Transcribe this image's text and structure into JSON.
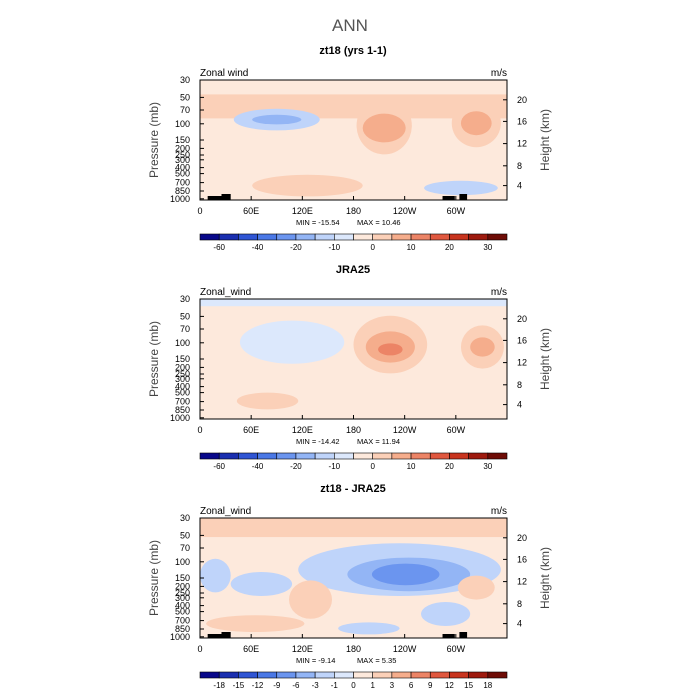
{
  "figure": {
    "title": "ANN"
  },
  "chart_data": [
    {
      "type": "heatmap",
      "title": "zt18 (yrs 1-1)",
      "corner_left": "Zonal wind",
      "corner_right": "m/s",
      "ylabel": "Pressure (mb)",
      "ylabel_right": "Height (km)",
      "xticks": [
        "0",
        "60E",
        "120E",
        "180",
        "120W",
        "60W"
      ],
      "yticks_left": [
        "30",
        "50",
        "70",
        "100",
        "150",
        "200",
        "250",
        "300",
        "400",
        "500",
        "700",
        "850",
        "1000"
      ],
      "yticks_right": [
        "20",
        "16",
        "12",
        "8",
        "4"
      ],
      "min_label": "MIN = -15.54",
      "max_label": "MAX = 10.46",
      "colorbar": {
        "levels": [
          -60,
          -50,
          -40,
          -30,
          -20,
          -15,
          -10,
          -5,
          0,
          5,
          10,
          15,
          20,
          25,
          30
        ],
        "labels": [
          "-60",
          "-40",
          "-20",
          "-10",
          "0",
          "10",
          "20",
          "30"
        ],
        "colors": [
          "#08088a",
          "#1a2fb0",
          "#2f55d4",
          "#4a78e6",
          "#6b95ef",
          "#93b5f5",
          "#bfd4fa",
          "#dce8fc",
          "#fde9dc",
          "#fbd0b8",
          "#f5ad8c",
          "#ec8466",
          "#e0583f",
          "#c8341e",
          "#9e1a0e",
          "#6e0c06"
        ]
      },
      "features": [
        {
          "kind": "band",
          "y0": 0.12,
          "y1": 0.32,
          "level": 9
        },
        {
          "kind": "blob",
          "cx": 0.25,
          "cy": 0.33,
          "rx": 0.14,
          "ry": 0.09,
          "level": 6
        },
        {
          "kind": "blob",
          "cx": 0.25,
          "cy": 0.33,
          "rx": 0.08,
          "ry": 0.04,
          "level": 5
        },
        {
          "kind": "blob",
          "cx": 0.6,
          "cy": 0.38,
          "rx": 0.09,
          "ry": 0.24,
          "level": 9
        },
        {
          "kind": "blob",
          "cx": 0.6,
          "cy": 0.4,
          "rx": 0.07,
          "ry": 0.12,
          "level": 10
        },
        {
          "kind": "blob",
          "cx": 0.9,
          "cy": 0.36,
          "rx": 0.08,
          "ry": 0.2,
          "level": 9
        },
        {
          "kind": "blob",
          "cx": 0.9,
          "cy": 0.36,
          "rx": 0.05,
          "ry": 0.1,
          "level": 10
        },
        {
          "kind": "blob",
          "cx": 0.35,
          "cy": 0.88,
          "rx": 0.18,
          "ry": 0.09,
          "level": 9
        },
        {
          "kind": "blob",
          "cx": 0.85,
          "cy": 0.9,
          "rx": 0.12,
          "ry": 0.06,
          "level": 6
        }
      ]
    },
    {
      "type": "heatmap",
      "title": "JRA25",
      "corner_left": "Zonal_wind",
      "corner_right": "m/s",
      "ylabel": "Pressure (mb)",
      "ylabel_right": "Height (km)",
      "xticks": [
        "0",
        "60E",
        "120E",
        "180",
        "120W",
        "60W"
      ],
      "yticks_left": [
        "30",
        "50",
        "70",
        "100",
        "150",
        "200",
        "250",
        "300",
        "400",
        "500",
        "700",
        "850",
        "1000"
      ],
      "yticks_right": [
        "20",
        "16",
        "12",
        "8",
        "4"
      ],
      "min_label": "MIN = -14.42",
      "max_label": "MAX = 11.94",
      "colorbar": {
        "levels": [
          -60,
          -50,
          -40,
          -30,
          -20,
          -15,
          -10,
          -5,
          0,
          5,
          10,
          15,
          20,
          25,
          30
        ],
        "labels": [
          "-60",
          "-40",
          "-20",
          "-10",
          "0",
          "10",
          "20",
          "30"
        ],
        "colors": [
          "#08088a",
          "#1a2fb0",
          "#2f55d4",
          "#4a78e6",
          "#6b95ef",
          "#93b5f5",
          "#bfd4fa",
          "#dce8fc",
          "#fde9dc",
          "#fbd0b8",
          "#f5ad8c",
          "#ec8466",
          "#e0583f",
          "#c8341e",
          "#9e1a0e",
          "#6e0c06"
        ]
      },
      "features": [
        {
          "kind": "band",
          "y0": 0.0,
          "y1": 0.06,
          "level": 7
        },
        {
          "kind": "blob",
          "cx": 0.28,
          "cy": 0.4,
          "rx": 0.12,
          "ry": 0.1,
          "level": 6
        },
        {
          "kind": "blob",
          "cx": 0.3,
          "cy": 0.36,
          "rx": 0.17,
          "ry": 0.18,
          "level": 7
        },
        {
          "kind": "blob",
          "cx": 0.62,
          "cy": 0.38,
          "rx": 0.12,
          "ry": 0.24,
          "level": 9
        },
        {
          "kind": "blob",
          "cx": 0.62,
          "cy": 0.4,
          "rx": 0.08,
          "ry": 0.13,
          "level": 10
        },
        {
          "kind": "blob",
          "cx": 0.62,
          "cy": 0.42,
          "rx": 0.04,
          "ry": 0.05,
          "level": 11
        },
        {
          "kind": "blob",
          "cx": 0.92,
          "cy": 0.4,
          "rx": 0.07,
          "ry": 0.18,
          "level": 9
        },
        {
          "kind": "blob",
          "cx": 0.92,
          "cy": 0.4,
          "rx": 0.04,
          "ry": 0.08,
          "level": 10
        },
        {
          "kind": "blob",
          "cx": 0.22,
          "cy": 0.85,
          "rx": 0.1,
          "ry": 0.07,
          "level": 9
        }
      ]
    },
    {
      "type": "heatmap",
      "title": "zt18 - JRA25",
      "corner_left": "Zonal_wind",
      "corner_right": "m/s",
      "ylabel": "Pressure (mb)",
      "ylabel_right": "Height (km)",
      "xticks": [
        "0",
        "60E",
        "120E",
        "180",
        "120W",
        "60W"
      ],
      "yticks_left": [
        "30",
        "50",
        "70",
        "100",
        "150",
        "200",
        "250",
        "300",
        "400",
        "500",
        "700",
        "850",
        "1000"
      ],
      "yticks_right": [
        "20",
        "16",
        "12",
        "8",
        "4"
      ],
      "min_label": "MIN = -9.14",
      "max_label": "MAX = 5.35",
      "colorbar": {
        "levels": [
          -18,
          -15,
          -12,
          -9,
          -6,
          -3,
          -1,
          0,
          1,
          3,
          6,
          9,
          12,
          15,
          18
        ],
        "labels": [
          "-18",
          "-15",
          "-12",
          "-9",
          "-6",
          "-3",
          "-1",
          "0",
          "1",
          "3",
          "6",
          "9",
          "12",
          "15",
          "18"
        ],
        "colors": [
          "#08088a",
          "#1a2fb0",
          "#2f55d4",
          "#4a78e6",
          "#6b95ef",
          "#93b5f5",
          "#bfd4fa",
          "#dce8fc",
          "#fde9dc",
          "#fbd0b8",
          "#f5ad8c",
          "#ec8466",
          "#e0583f",
          "#c8341e",
          "#9e1a0e",
          "#6e0c06"
        ]
      },
      "features": [
        {
          "kind": "band",
          "y0": 0.0,
          "y1": 0.16,
          "level": 9
        },
        {
          "kind": "band",
          "y0": 0.16,
          "y1": 0.27,
          "level": 8
        },
        {
          "kind": "blob",
          "cx": 0.65,
          "cy": 0.43,
          "rx": 0.33,
          "ry": 0.22,
          "level": 6
        },
        {
          "kind": "blob",
          "cx": 0.68,
          "cy": 0.47,
          "rx": 0.2,
          "ry": 0.14,
          "level": 5
        },
        {
          "kind": "blob",
          "cx": 0.67,
          "cy": 0.47,
          "rx": 0.11,
          "ry": 0.09,
          "level": 4
        },
        {
          "kind": "blob",
          "cx": 0.05,
          "cy": 0.48,
          "rx": 0.05,
          "ry": 0.14,
          "level": 6
        },
        {
          "kind": "blob",
          "cx": 0.2,
          "cy": 0.55,
          "rx": 0.1,
          "ry": 0.1,
          "level": 6
        },
        {
          "kind": "blob",
          "cx": 0.36,
          "cy": 0.68,
          "rx": 0.07,
          "ry": 0.16,
          "level": 9
        },
        {
          "kind": "blob",
          "cx": 0.9,
          "cy": 0.58,
          "rx": 0.06,
          "ry": 0.1,
          "level": 9
        },
        {
          "kind": "blob",
          "cx": 0.18,
          "cy": 0.88,
          "rx": 0.16,
          "ry": 0.07,
          "level": 9
        },
        {
          "kind": "blob",
          "cx": 0.8,
          "cy": 0.8,
          "rx": 0.08,
          "ry": 0.1,
          "level": 6
        },
        {
          "kind": "blob",
          "cx": 0.55,
          "cy": 0.92,
          "rx": 0.1,
          "ry": 0.05,
          "level": 6
        }
      ]
    }
  ]
}
